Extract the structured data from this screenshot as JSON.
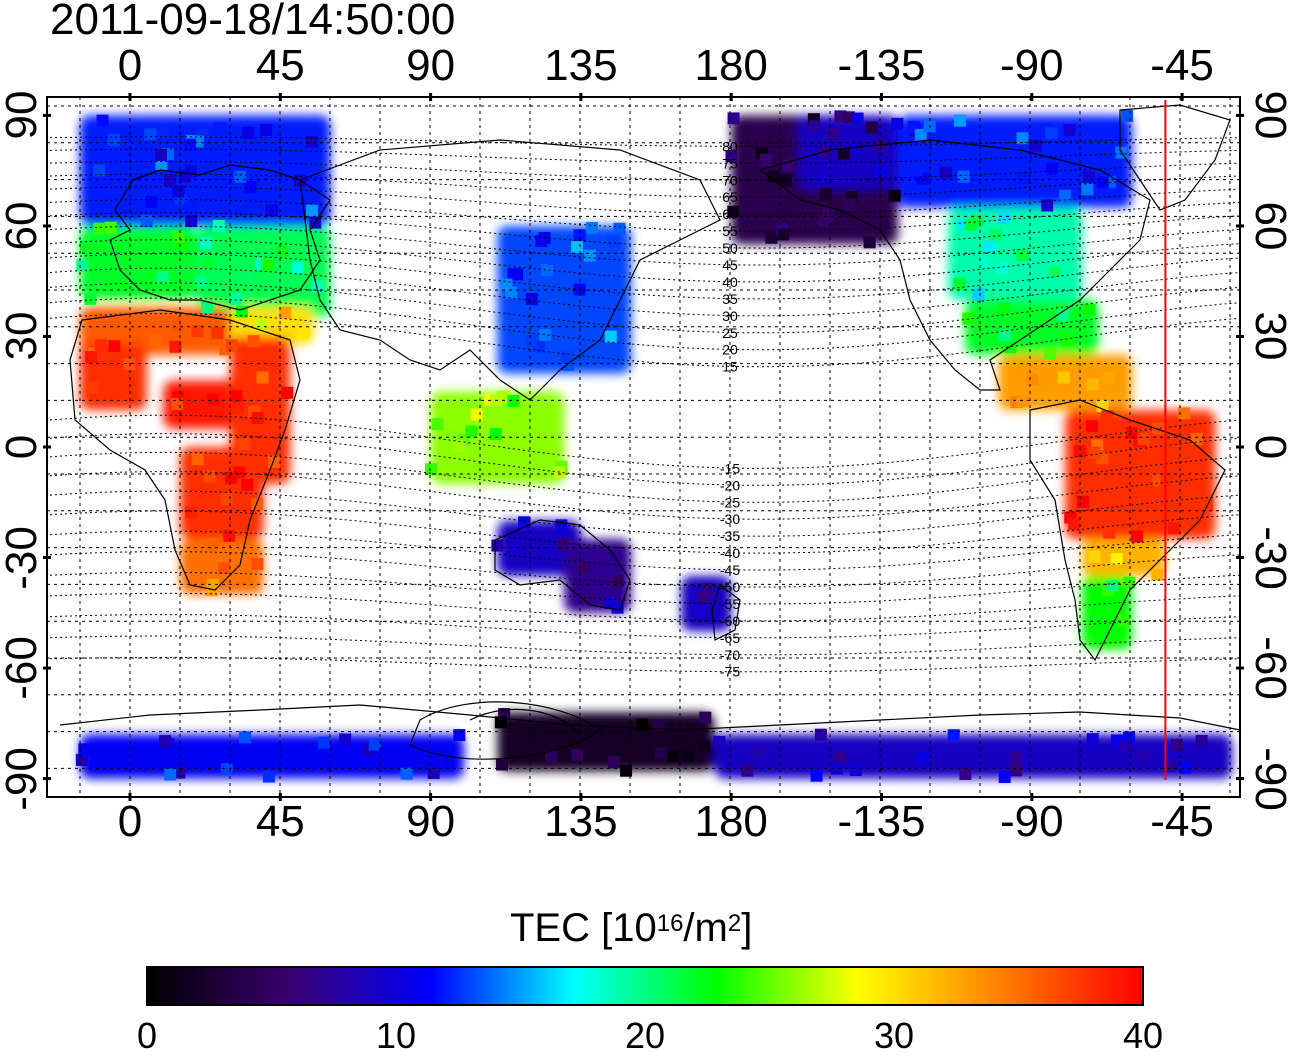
{
  "title": "2011-09-18/14:50:00",
  "map": {
    "lon_ticks": [
      "0",
      "45",
      "90",
      "135",
      "180",
      "-135",
      "-90",
      "-45"
    ],
    "lat_ticks": [
      "90",
      "60",
      "30",
      "0",
      "-30",
      "-60",
      "-90"
    ],
    "contour_labels": [
      "80",
      "75",
      "70",
      "65",
      "60",
      "55",
      "50",
      "45",
      "40",
      "35",
      "30",
      "25",
      "20",
      "15",
      "-15",
      "-20",
      "-25",
      "-30",
      "-35",
      "-40",
      "-45",
      "-50",
      "-55",
      "-60",
      "-65",
      "-70",
      "-75"
    ],
    "terminator_longitude": -50,
    "terminator_color": "#ff0000"
  },
  "colorbar": {
    "title_prefix": "TEC  [10",
    "title_exp1": "16",
    "title_mid": "/m",
    "title_exp2": "2",
    "title_suffix": "]",
    "tick_labels": [
      "0",
      "10",
      "20",
      "30",
      "40"
    ],
    "min": 0,
    "max": 40,
    "colors": [
      "#000000",
      "#3a0070",
      "#0000ff",
      "#00ffff",
      "#00ff00",
      "#ffff00",
      "#ff8000",
      "#ff0000"
    ]
  },
  "chart_data": {
    "type": "heatmap",
    "title": "2011-09-18/14:50:00",
    "quantity": "TEC  [10^16/m^2]",
    "value_range": [
      0,
      40
    ],
    "lon_range": [
      -15,
      313
    ],
    "lat_range": [
      -95,
      97
    ],
    "regions": [
      {
        "lon": [
          -15,
          60
        ],
        "lat": [
          60,
          90
        ],
        "tec": 12
      },
      {
        "lon": [
          -15,
          20
        ],
        "lat": [
          40,
          60
        ],
        "tec": 22
      },
      {
        "lon": [
          20,
          60
        ],
        "lat": [
          35,
          60
        ],
        "tec": 21
      },
      {
        "lon": [
          -15,
          30
        ],
        "lat": [
          25,
          38
        ],
        "tec": 36
      },
      {
        "lon": [
          30,
          55
        ],
        "lat": [
          28,
          38
        ],
        "tec": 30
      },
      {
        "lon": [
          -15,
          5
        ],
        "lat": [
          10,
          28
        ],
        "tec": 38
      },
      {
        "lon": [
          10,
          35
        ],
        "lat": [
          5,
          18
        ],
        "tec": 39
      },
      {
        "lon": [
          30,
          48
        ],
        "lat": [
          -10,
          30
        ],
        "tec": 38
      },
      {
        "lon": [
          15,
          40
        ],
        "lat": [
          -25,
          0
        ],
        "tec": 38
      },
      {
        "lon": [
          15,
          40
        ],
        "lat": [
          -40,
          -25
        ],
        "tec": 35
      },
      {
        "lon": [
          90,
          130
        ],
        "lat": [
          -10,
          15
        ],
        "tec": 26
      },
      {
        "lon": [
          110,
          150
        ],
        "lat": [
          20,
          60
        ],
        "tec": 13
      },
      {
        "lon": [
          110,
          135
        ],
        "lat": [
          -35,
          -20
        ],
        "tec": 9
      },
      {
        "lon": [
          130,
          150
        ],
        "lat": [
          -45,
          -25
        ],
        "tec": 7
      },
      {
        "lon": [
          165,
          180
        ],
        "lat": [
          -50,
          -35
        ],
        "tec": 9
      },
      {
        "lon": [
          180,
          230
        ],
        "lat": [
          55,
          90
        ],
        "tec": 4
      },
      {
        "lon": [
          200,
          230
        ],
        "lat": [
          70,
          90
        ],
        "tec": 9
      },
      {
        "lon": [
          230,
          300
        ],
        "lat": [
          65,
          90
        ],
        "tec": 12
      },
      {
        "lon": [
          245,
          285
        ],
        "lat": [
          40,
          65
        ],
        "tec": 19
      },
      {
        "lon": [
          250,
          290
        ],
        "lat": [
          25,
          40
        ],
        "tec": 22
      },
      {
        "lon": [
          260,
          300
        ],
        "lat": [
          10,
          25
        ],
        "tec": 33
      },
      {
        "lon": [
          280,
          325
        ],
        "lat": [
          -25,
          10
        ],
        "tec": 38
      },
      {
        "lon": [
          285,
          310
        ],
        "lat": [
          -35,
          -25
        ],
        "tec": 32
      },
      {
        "lon": [
          285,
          300
        ],
        "lat": [
          -55,
          -35
        ],
        "tec": 23
      },
      {
        "lon": [
          -15,
          100
        ],
        "lat": [
          -90,
          -78
        ],
        "tec": 11
      },
      {
        "lon": [
          110,
          175
        ],
        "lat": [
          -88,
          -72
        ],
        "tec": 2
      },
      {
        "lon": [
          175,
          330
        ],
        "lat": [
          -90,
          -78
        ],
        "tec": 9
      }
    ]
  }
}
